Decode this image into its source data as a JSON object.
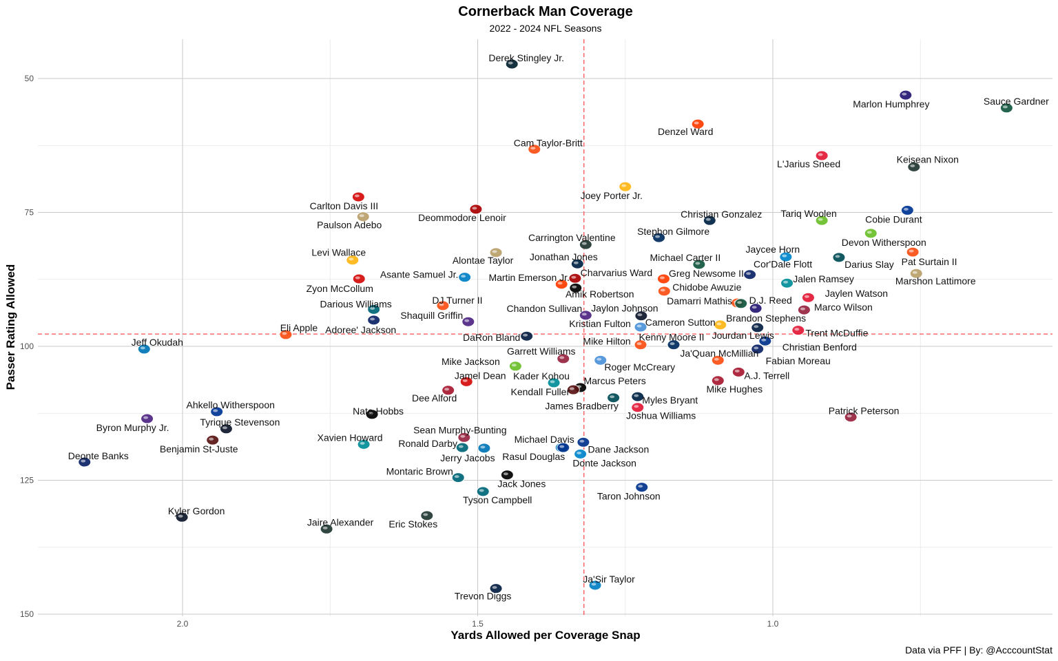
{
  "chart_data": {
    "type": "scatter",
    "title": "Cornerback Man Coverage",
    "subtitle": "2022 - 2024 NFL Seasons",
    "xlabel": "Yards Allowed per Coverage Snap",
    "ylabel": "Passer Rating Allowed",
    "caption": "Data via PFF | By: @AcccountStat",
    "xlim": [
      2.245,
      0.526
    ],
    "x_reversed": true,
    "ylim": [
      42.7,
      150.4
    ],
    "y_reversed": true,
    "x_ticks": [
      2.0,
      1.5,
      1.0
    ],
    "x_tick_labels": [
      "2.0",
      "1.5",
      "1.0"
    ],
    "y_ticks": [
      50,
      75,
      100,
      125,
      150
    ],
    "y_tick_labels": [
      "50",
      "75",
      "100",
      "125",
      "150"
    ],
    "grid": true,
    "reference_lines": {
      "x_mean": 1.32,
      "y_mean": 97.7,
      "color": "#ff4d4d"
    },
    "team_colors": {
      "HOU": "#03202f",
      "BAL": "#241773",
      "NYJ": "#125740",
      "CLE": "#ff3c00",
      "CIN": "#fb4f14",
      "KC": "#e31837",
      "GB": "#203731",
      "PIT": "#ffb612",
      "TB": "#d50a0a",
      "SF": "#aa0000",
      "NO": "#b9a06a",
      "NE": "#002244",
      "SEA": "#69be28",
      "LAR": "#003594",
      "IND": "#002c5f",
      "PHI": "#004c54",
      "DEN": "#fb4f14",
      "CAR": "#0085ca",
      "NYG": "#0b2265",
      "LAC": "#0080c6",
      "MIA": "#008e97",
      "LV": "#000000",
      "JAX": "#006778",
      "ARI": "#97233f",
      "MIN": "#4f2683",
      "TEN": "#4b92db",
      "DAL": "#041e42",
      "DET": "#0076b6",
      "ATL": "#a71930",
      "WAS": "#5a1414",
      "CHI": "#0b162a",
      "BUF": "#00338d"
    },
    "points": [
      {
        "name": "Derek Stingley Jr.",
        "team": "HOU",
        "x": 1.442,
        "y": 47.3
      },
      {
        "name": "Marlon Humphrey",
        "team": "BAL",
        "x": 0.775,
        "y": 53.1
      },
      {
        "name": "Sauce Gardner",
        "team": "NYJ",
        "x": 0.604,
        "y": 55.5
      },
      {
        "name": "Denzel Ward",
        "team": "CLE",
        "x": 1.127,
        "y": 58.5
      },
      {
        "name": "Cam Taylor-Britt",
        "team": "CIN",
        "x": 1.404,
        "y": 63.2
      },
      {
        "name": "L'Jarius Sneed",
        "team": "KC",
        "x": 0.917,
        "y": 64.4
      },
      {
        "name": "Keisean Nixon",
        "team": "GB",
        "x": 0.761,
        "y": 66.5
      },
      {
        "name": "Joey Porter Jr.",
        "team": "PIT",
        "x": 1.25,
        "y": 70.2
      },
      {
        "name": "Carlton Davis III",
        "team": "TB",
        "x": 1.702,
        "y": 72.1
      },
      {
        "name": "Deommodore Lenoir",
        "team": "SF",
        "x": 1.503,
        "y": 74.4
      },
      {
        "name": "Paulson Adebo",
        "team": "NO",
        "x": 1.694,
        "y": 75.8
      },
      {
        "name": "Christian Gonzalez",
        "team": "NE",
        "x": 1.107,
        "y": 76.5
      },
      {
        "name": "Tariq Woolen",
        "team": "SEA",
        "x": 0.917,
        "y": 76.5
      },
      {
        "name": "Cobie Durant",
        "team": "LAR",
        "x": 0.772,
        "y": 74.6
      },
      {
        "name": "Stephon Gilmore",
        "team": "IND",
        "x": 1.193,
        "y": 79.7
      },
      {
        "name": "Carrington Valentine",
        "team": "GB",
        "x": 1.317,
        "y": 81.0
      },
      {
        "name": "Devon Witherspoon",
        "team": "SEA",
        "x": 0.834,
        "y": 78.9
      },
      {
        "name": "Levi Wallace",
        "team": "PIT",
        "x": 1.712,
        "y": 83.9
      },
      {
        "name": "Alontae Taylor",
        "team": "NO",
        "x": 1.469,
        "y": 82.5
      },
      {
        "name": "Jonathan Jones",
        "team": "NE",
        "x": 1.331,
        "y": 84.6
      },
      {
        "name": "Michael Carter II",
        "team": "NYJ",
        "x": 1.125,
        "y": 84.7
      },
      {
        "name": "Jaycee Horn",
        "team": "CAR",
        "x": 0.978,
        "y": 83.3
      },
      {
        "name": "Darius Slay",
        "team": "PHI",
        "x": 0.888,
        "y": 83.4
      },
      {
        "name": "Pat Surtain II",
        "team": "DEN",
        "x": 0.763,
        "y": 82.4
      },
      {
        "name": "Marshon Lattimore",
        "team": "NO",
        "x": 0.757,
        "y": 86.4
      },
      {
        "name": "Cor'Dale Flott",
        "team": "NYG",
        "x": 1.039,
        "y": 86.6
      },
      {
        "name": "Greg Newsome II",
        "team": "CLE",
        "x": 1.185,
        "y": 87.4
      },
      {
        "name": "Asante Samuel Jr.",
        "team": "LAC",
        "x": 1.522,
        "y": 87.1
      },
      {
        "name": "Zyon McCollum",
        "team": "TB",
        "x": 1.701,
        "y": 87.4
      },
      {
        "name": "Charvarius Ward",
        "team": "SF",
        "x": 1.335,
        "y": 87.3
      },
      {
        "name": "Martin Emerson Jr.",
        "team": "CLE",
        "x": 1.358,
        "y": 88.4
      },
      {
        "name": "Amik Robertson",
        "team": "LV",
        "x": 1.334,
        "y": 89.1
      },
      {
        "name": "Jalen Ramsey",
        "team": "MIA",
        "x": 0.976,
        "y": 88.2
      },
      {
        "name": "Chidobe Awuzie",
        "team": "CIN",
        "x": 1.184,
        "y": 89.7
      },
      {
        "name": "Jaylen Watson",
        "team": "KC",
        "x": 0.94,
        "y": 90.9
      },
      {
        "name": "DJ Turner II",
        "team": "CIN",
        "x": 1.559,
        "y": 92.4
      },
      {
        "name": "Darious Williams",
        "team": "JAX",
        "x": 1.676,
        "y": 93.1
      },
      {
        "name": "Damarri Mathis",
        "team": "DEN",
        "x": 1.06,
        "y": 91.9
      },
      {
        "name": "D.J. Reed",
        "team": "NYJ",
        "x": 1.054,
        "y": 92.0
      },
      {
        "name": "Marco Wilson",
        "team": "ARI",
        "x": 0.947,
        "y": 93.2
      },
      {
        "name": "Brandon Stephens",
        "team": "BAL",
        "x": 1.029,
        "y": 92.9
      },
      {
        "name": "Chandon Sullivan",
        "team": "MIN",
        "x": 1.317,
        "y": 94.2
      },
      {
        "name": "Jaylon Johnson",
        "team": "CHI",
        "x": 1.223,
        "y": 94.3
      },
      {
        "name": "Adoree' Jackson",
        "team": "NYG",
        "x": 1.676,
        "y": 95.1
      },
      {
        "name": "Shaquill Griffin",
        "team": "MIN",
        "x": 1.516,
        "y": 95.4
      },
      {
        "name": "Kristian Fulton",
        "team": "TEN",
        "x": 1.224,
        "y": 96.4
      },
      {
        "name": "Cameron Sutton",
        "team": "PIT",
        "x": 1.089,
        "y": 96.0
      },
      {
        "name": "Jourdan Lewis",
        "team": "DAL",
        "x": 1.026,
        "y": 96.5
      },
      {
        "name": "Trent McDuffie",
        "team": "KC",
        "x": 0.957,
        "y": 97.0
      },
      {
        "name": "Eli Apple",
        "team": "CIN",
        "x": 1.825,
        "y": 97.8
      },
      {
        "name": "Jeff Okudah",
        "team": "DET",
        "x": 2.065,
        "y": 100.5
      },
      {
        "name": "DaRon Bland",
        "team": "DAL",
        "x": 1.417,
        "y": 98.1
      },
      {
        "name": "Mike Hilton",
        "team": "CIN",
        "x": 1.224,
        "y": 99.7
      },
      {
        "name": "Kenny Moore II",
        "team": "IND",
        "x": 1.168,
        "y": 99.7
      },
      {
        "name": "Christian Benford",
        "team": "BUF",
        "x": 1.013,
        "y": 99.0
      },
      {
        "name": "Fabian Moreau",
        "team": "NYG",
        "x": 1.026,
        "y": 100.5
      },
      {
        "name": "Ja'Quan McMillian",
        "team": "DEN",
        "x": 1.093,
        "y": 102.6
      },
      {
        "name": "Garrett Williams",
        "team": "ARI",
        "x": 1.355,
        "y": 102.3
      },
      {
        "name": "Mike Jackson",
        "team": "SEA",
        "x": 1.436,
        "y": 103.7
      },
      {
        "name": "Roger McCreary",
        "team": "TEN",
        "x": 1.292,
        "y": 102.6
      },
      {
        "name": "A.J. Terrell",
        "team": "ATL",
        "x": 1.058,
        "y": 104.8
      },
      {
        "name": "Jamel Dean",
        "team": "TB",
        "x": 1.519,
        "y": 106.6
      },
      {
        "name": "Kader Kohou",
        "team": "MIA",
        "x": 1.371,
        "y": 106.8
      },
      {
        "name": "Marcus Peters",
        "team": "LV",
        "x": 1.326,
        "y": 107.7
      },
      {
        "name": "Kendall Fuller",
        "team": "WAS",
        "x": 1.338,
        "y": 108.1
      },
      {
        "name": "Mike Hughes",
        "team": "ATL",
        "x": 1.093,
        "y": 106.4
      },
      {
        "name": "Dee Alford",
        "team": "ATL",
        "x": 1.55,
        "y": 108.2
      },
      {
        "name": "Myles Bryant",
        "team": "NE",
        "x": 1.229,
        "y": 109.4
      },
      {
        "name": "James Bradberry",
        "team": "PHI",
        "x": 1.27,
        "y": 109.6
      },
      {
        "name": "Joshua Williams",
        "team": "KC",
        "x": 1.229,
        "y": 111.4
      },
      {
        "name": "Ahkello Witherspoon",
        "team": "LAR",
        "x": 1.942,
        "y": 112.2
      },
      {
        "name": "Byron Murphy Jr.",
        "team": "MIN",
        "x": 2.06,
        "y": 113.5
      },
      {
        "name": "Nate Hobbs",
        "team": "LV",
        "x": 1.679,
        "y": 112.7
      },
      {
        "name": "Tyrique Stevenson",
        "team": "CHI",
        "x": 1.926,
        "y": 115.4
      },
      {
        "name": "Patrick Peterson",
        "team": "ARI",
        "x": 0.868,
        "y": 113.2
      },
      {
        "name": "Sean Murphy-Bunting",
        "team": "ARI",
        "x": 1.523,
        "y": 117.0
      },
      {
        "name": "Benjamin St-Juste",
        "team": "WAS",
        "x": 1.949,
        "y": 117.5
      },
      {
        "name": "Xavien Howard",
        "team": "MIA",
        "x": 1.693,
        "y": 118.3
      },
      {
        "name": "Ronald Darby",
        "team": "JAX",
        "x": 1.526,
        "y": 118.9
      },
      {
        "name": "Jerry Jacobs",
        "team": "DET",
        "x": 1.489,
        "y": 119.0
      },
      {
        "name": "Michael Davis",
        "team": "LAC",
        "x": 1.358,
        "y": 118.9
      },
      {
        "name": "Rasul Douglas",
        "team": "BUF",
        "x": 1.355,
        "y": 118.9
      },
      {
        "name": "Dane Jackson",
        "team": "BUF",
        "x": 1.321,
        "y": 117.9
      },
      {
        "name": "Donte Jackson",
        "team": "CAR",
        "x": 1.326,
        "y": 120.1
      },
      {
        "name": "Deonte Banks",
        "team": "NYG",
        "x": 2.166,
        "y": 121.6
      },
      {
        "name": "Montaric Brown",
        "team": "JAX",
        "x": 1.533,
        "y": 124.5
      },
      {
        "name": "Jack Jones",
        "team": "LV",
        "x": 1.45,
        "y": 124.0
      },
      {
        "name": "Tyson Campbell",
        "team": "JAX",
        "x": 1.491,
        "y": 127.1
      },
      {
        "name": "Taron Johnson",
        "team": "BUF",
        "x": 1.222,
        "y": 126.3
      },
      {
        "name": "Kyler Gordon",
        "team": "CHI",
        "x": 2.001,
        "y": 131.9
      },
      {
        "name": "Eric Stokes",
        "team": "GB",
        "x": 1.586,
        "y": 131.6
      },
      {
        "name": "Jaire Alexander",
        "team": "GB",
        "x": 1.756,
        "y": 134.1
      },
      {
        "name": "Ja'Sir Taylor",
        "team": "LAC",
        "x": 1.301,
        "y": 144.6
      },
      {
        "name": "Trevon Diggs",
        "team": "DAL",
        "x": 1.469,
        "y": 145.2
      }
    ]
  }
}
